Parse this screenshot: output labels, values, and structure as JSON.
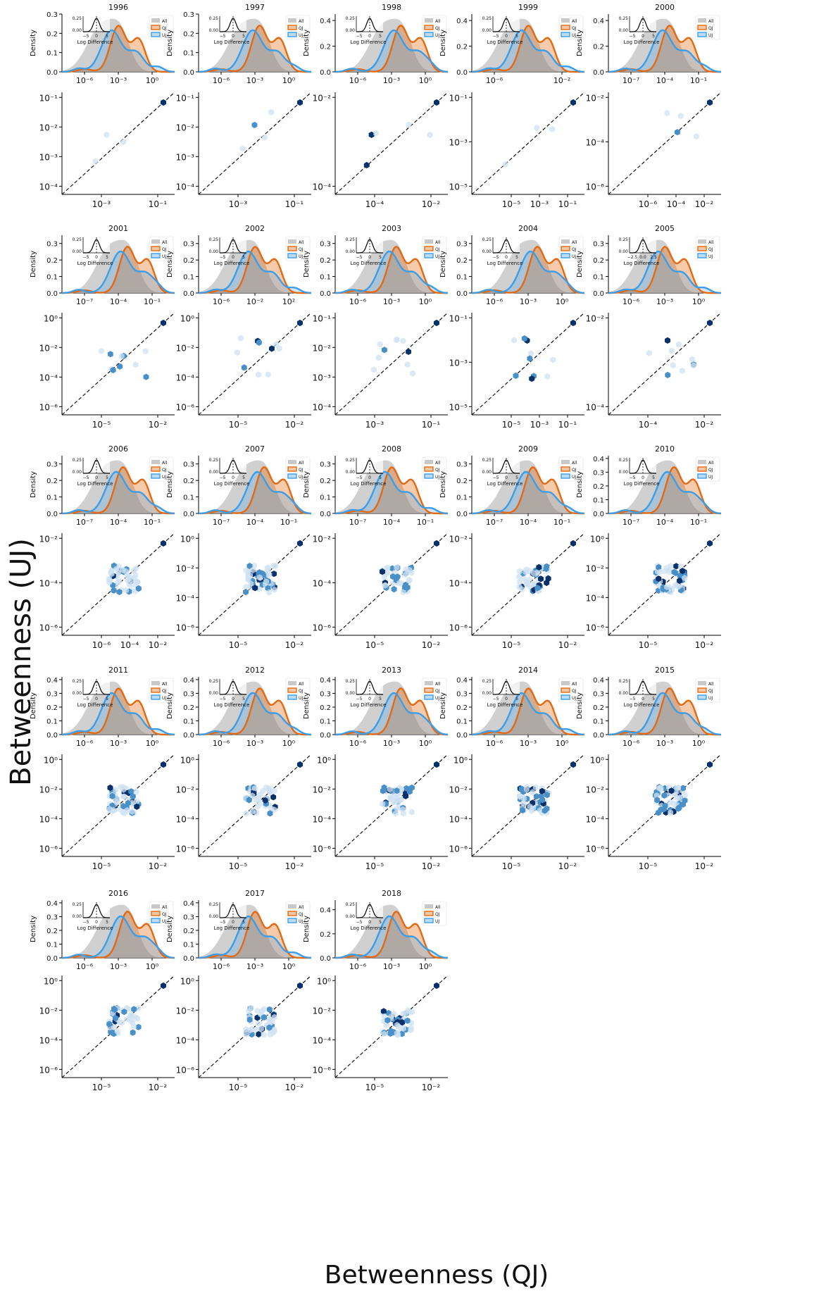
{
  "figure": {
    "ylabel": "Betweenness (UJ)",
    "xlabel": "Betweenness (QJ)"
  },
  "colors": {
    "all": "#c8c8c8",
    "qj": "#e46a12",
    "uj": "#3d9de6",
    "hex_dark": "#08306b",
    "hex_mid": "#4a90c8",
    "hex_light": "#cfe1f2",
    "diag": "#000000"
  },
  "density_common": {
    "ylabel": "Density",
    "inset_xlabel": "Log Difference",
    "legend": [
      "All",
      "QJ",
      "UJ"
    ]
  },
  "chart_data": [
    {
      "type": "area",
      "title": "1996",
      "ylim": [
        0,
        0.3
      ],
      "yticks": [
        "0.0",
        "0.1",
        "0.2",
        "0.3"
      ],
      "xticks": [
        "10⁻⁶",
        "10⁻³",
        "10⁰"
      ],
      "inset_yticks": [
        "0.25",
        "0.00"
      ],
      "inset_xticks": [
        "−5",
        "0",
        "5"
      ],
      "scatter_xticks": [
        "10⁻³",
        "10⁻¹"
      ],
      "scatter_yticks": [
        "10⁻¹",
        "10⁻²",
        "10⁻³",
        "10⁻⁴"
      ]
    },
    {
      "type": "area",
      "title": "1997",
      "ylim": [
        0,
        0.3
      ],
      "yticks": [
        "0.0",
        "0.1",
        "0.2",
        "0.3"
      ],
      "xticks": [
        "10⁻⁶",
        "10⁻³",
        "10⁰"
      ],
      "inset_yticks": [
        "0.25",
        "0.00"
      ],
      "inset_xticks": [
        "−5",
        "0",
        "5"
      ],
      "scatter_xticks": [
        "10⁻³",
        "10⁻¹"
      ],
      "scatter_yticks": [
        "10⁻¹",
        "10⁻²",
        "10⁻³",
        "10⁻⁴"
      ]
    },
    {
      "type": "area",
      "title": "1998",
      "ylim": [
        0,
        0.45
      ],
      "yticks": [
        "0.0",
        "0.2",
        "0.4"
      ],
      "xticks": [
        "10⁻⁶",
        "10⁻³",
        "10⁰"
      ],
      "inset_yticks": [
        "0.25",
        "0.00"
      ],
      "inset_xticks": [
        "−5",
        "0",
        "5"
      ],
      "scatter_xticks": [
        "10⁻⁴",
        "10⁻²"
      ],
      "scatter_yticks": [
        "10⁻²",
        "10⁻⁴"
      ]
    },
    {
      "type": "area",
      "title": "1999",
      "ylim": [
        0,
        0.45
      ],
      "yticks": [
        "0.0",
        "0.2",
        "0.4"
      ],
      "xticks": [
        "10⁻⁶",
        "10⁻²"
      ],
      "inset_yticks": [
        "0.25",
        "0.00"
      ],
      "inset_xticks": [
        "−5",
        "0",
        "5"
      ],
      "scatter_xticks": [
        "10⁻⁵",
        "10⁻³",
        "10⁻¹"
      ],
      "scatter_yticks": [
        "10⁻¹",
        "10⁻³",
        "10⁻⁵"
      ]
    },
    {
      "type": "area",
      "title": "2000",
      "ylim": [
        0,
        0.45
      ],
      "yticks": [
        "0.0",
        "0.2",
        "0.4"
      ],
      "xticks": [
        "10⁻⁷",
        "10⁻⁴",
        "10⁻¹"
      ],
      "inset_yticks": [
        "0.25",
        "0.00"
      ],
      "inset_xticks": [
        "−5",
        "0",
        "5"
      ],
      "scatter_xticks": [
        "10⁻⁶",
        "10⁻⁴",
        "10⁻²"
      ],
      "scatter_yticks": [
        "10⁻²",
        "10⁻⁴",
        "10⁻⁶"
      ]
    },
    {
      "type": "area",
      "title": "2001",
      "ylim": [
        0,
        0.35
      ],
      "yticks": [
        "0.0",
        "0.1",
        "0.2",
        "0.3"
      ],
      "xticks": [
        "10⁻⁷",
        "10⁻⁴",
        "10⁻¹"
      ],
      "inset_yticks": [
        "0.25",
        "0.00"
      ],
      "inset_xticks": [
        "−5",
        "0",
        "5"
      ],
      "scatter_xticks": [
        "10⁻⁵",
        "10⁻²"
      ],
      "scatter_yticks": [
        "10⁰",
        "10⁻²",
        "10⁻⁴",
        "10⁻⁶"
      ]
    },
    {
      "type": "area",
      "title": "2002",
      "ylim": [
        0,
        0.35
      ],
      "yticks": [
        "0.0",
        "0.1",
        "0.2",
        "0.3"
      ],
      "xticks": [
        "10⁻⁶",
        "10⁻²",
        "10²"
      ],
      "inset_yticks": [
        "0.25",
        "0.00"
      ],
      "inset_xticks": [
        "−5",
        "0",
        "5"
      ],
      "scatter_xticks": [
        "10⁻⁵",
        "10⁻²"
      ],
      "scatter_yticks": [
        "10⁰",
        "10⁻²",
        "10⁻⁴",
        "10⁻⁶"
      ]
    },
    {
      "type": "area",
      "title": "2003",
      "ylim": [
        0,
        0.35
      ],
      "yticks": [
        "0.0",
        "0.1",
        "0.2",
        "0.3"
      ],
      "xticks": [
        "10⁻⁶",
        "10⁻³",
        "10⁰"
      ],
      "inset_yticks": [
        "0.25",
        "0.00"
      ],
      "inset_xticks": [
        "−5",
        "0",
        "5"
      ],
      "scatter_xticks": [
        "10⁻³",
        "10⁻¹"
      ],
      "scatter_yticks": [
        "10⁻¹",
        "10⁻²",
        "10⁻³",
        "10⁻⁴"
      ]
    },
    {
      "type": "area",
      "title": "2004",
      "ylim": [
        0,
        0.35
      ],
      "yticks": [
        "0.0",
        "0.1",
        "0.2",
        "0.3"
      ],
      "xticks": [
        "10⁻⁶",
        "10⁻³",
        "10⁰"
      ],
      "inset_yticks": [
        "0.25",
        "0.00"
      ],
      "inset_xticks": [
        "−5",
        "0",
        "5"
      ],
      "scatter_xticks": [
        "10⁻⁵",
        "10⁻³",
        "10⁻¹"
      ],
      "scatter_yticks": [
        "10⁻¹",
        "10⁻³",
        "10⁻⁵"
      ]
    },
    {
      "type": "area",
      "title": "2005",
      "ylim": [
        0,
        0.35
      ],
      "yticks": [
        "0.0",
        "0.1",
        "0.2",
        "0.3"
      ],
      "xticks": [
        "10⁻⁶",
        "10⁻³",
        "10⁰"
      ],
      "inset_yticks": [
        "0.25",
        "0.00"
      ],
      "inset_xticks": [
        "−2.5",
        "0.0",
        "2.5"
      ],
      "scatter_xticks": [
        "10⁻⁴",
        "10⁻²"
      ],
      "scatter_yticks": [
        "10⁻²",
        "10⁻⁴"
      ]
    },
    {
      "type": "area",
      "title": "2006",
      "ylim": [
        0,
        0.35
      ],
      "yticks": [
        "0.0",
        "0.1",
        "0.2",
        "0.3"
      ],
      "xticks": [
        "10⁻⁷",
        "10⁻⁴",
        "10⁻¹"
      ],
      "inset_yticks": [
        "0.25",
        "0.00"
      ],
      "inset_xticks": [
        "−5",
        "0",
        "5"
      ],
      "scatter_xticks": [
        "10⁻⁶",
        "10⁻⁴",
        "10⁻²"
      ],
      "scatter_yticks": [
        "10⁻²",
        "10⁻⁴",
        "10⁻⁶"
      ]
    },
    {
      "type": "area",
      "title": "2007",
      "ylim": [
        0,
        0.35
      ],
      "yticks": [
        "0.0",
        "0.1",
        "0.2",
        "0.3"
      ],
      "xticks": [
        "10⁻⁷",
        "10⁻⁴",
        "10⁻¹"
      ],
      "inset_yticks": [
        "0.25",
        "0.00"
      ],
      "inset_xticks": [
        "−5",
        "0",
        "5"
      ],
      "scatter_xticks": [
        "10⁻⁵",
        "10⁻²"
      ],
      "scatter_yticks": [
        "10⁰",
        "10⁻²",
        "10⁻⁴",
        "10⁻⁶"
      ]
    },
    {
      "type": "area",
      "title": "2008",
      "ylim": [
        0,
        0.35
      ],
      "yticks": [
        "0.0",
        "0.1",
        "0.2",
        "0.3"
      ],
      "xticks": [
        "10⁻⁷",
        "10⁻⁴",
        "10⁻¹"
      ],
      "inset_yticks": [
        "0.25",
        "0.00"
      ],
      "inset_xticks": [
        "−5",
        "0",
        "5"
      ],
      "scatter_xticks": [
        "10⁻⁵",
        "10⁻²"
      ],
      "scatter_yticks": [
        "10⁻²",
        "10⁻⁴",
        "10⁻⁶"
      ]
    },
    {
      "type": "area",
      "title": "2009",
      "ylim": [
        0,
        0.35
      ],
      "yticks": [
        "0.0",
        "0.1",
        "0.2",
        "0.3"
      ],
      "xticks": [
        "10⁻⁷",
        "10⁻⁴",
        "10⁻¹"
      ],
      "inset_yticks": [
        "0.25",
        "0.00"
      ],
      "inset_xticks": [
        "−5",
        "0",
        "5"
      ],
      "scatter_xticks": [
        "10⁻⁵",
        "10⁻²"
      ],
      "scatter_yticks": [
        "10⁻²",
        "10⁻⁴",
        "10⁻⁶"
      ]
    },
    {
      "type": "area",
      "title": "2010",
      "ylim": [
        0,
        0.42
      ],
      "yticks": [
        "0.0",
        "0.1",
        "0.2",
        "0.3",
        "0.4"
      ],
      "xticks": [
        "10⁻⁷",
        "10⁻⁴",
        "10⁻¹"
      ],
      "inset_yticks": [
        "0.25",
        "0.00"
      ],
      "inset_xticks": [
        "−5",
        "0",
        "5"
      ],
      "scatter_xticks": [
        "10⁻⁵",
        "10⁻²"
      ],
      "scatter_yticks": [
        "10⁰",
        "10⁻²",
        "10⁻⁴",
        "10⁻⁶"
      ]
    },
    {
      "type": "area",
      "title": "2011",
      "ylim": [
        0,
        0.42
      ],
      "yticks": [
        "0.0",
        "0.1",
        "0.2",
        "0.3",
        "0.4"
      ],
      "xticks": [
        "10⁻⁶",
        "10⁻³",
        "10⁰"
      ],
      "inset_yticks": [
        "0.25",
        "0.00"
      ],
      "inset_xticks": [
        "−5",
        "0",
        "5"
      ],
      "scatter_xticks": [
        "10⁻⁵",
        "10⁻²"
      ],
      "scatter_yticks": [
        "10⁰",
        "10⁻²",
        "10⁻⁴",
        "10⁻⁶"
      ]
    },
    {
      "type": "area",
      "title": "2012",
      "ylim": [
        0,
        0.42
      ],
      "yticks": [
        "0.0",
        "0.1",
        "0.2",
        "0.3",
        "0.4"
      ],
      "xticks": [
        "10⁻⁶",
        "10⁻³",
        "10⁰"
      ],
      "inset_yticks": [
        "0.25",
        "0.00"
      ],
      "inset_xticks": [
        "−5",
        "0",
        "5"
      ],
      "scatter_xticks": [
        "10⁻⁵",
        "10⁻²"
      ],
      "scatter_yticks": [
        "10⁰",
        "10⁻²",
        "10⁻⁴",
        "10⁻⁶"
      ]
    },
    {
      "type": "area",
      "title": "2013",
      "ylim": [
        0,
        0.42
      ],
      "yticks": [
        "0.0",
        "0.1",
        "0.2",
        "0.3",
        "0.4"
      ],
      "xticks": [
        "10⁻⁶",
        "10⁻³",
        "10⁰"
      ],
      "inset_yticks": [
        "0.25",
        "0.00"
      ],
      "inset_xticks": [
        "−5",
        "0",
        "5"
      ],
      "scatter_xticks": [
        "10⁻⁵",
        "10⁻²"
      ],
      "scatter_yticks": [
        "10⁰",
        "10⁻²",
        "10⁻⁴",
        "10⁻⁶"
      ]
    },
    {
      "type": "area",
      "title": "2014",
      "ylim": [
        0,
        0.42
      ],
      "yticks": [
        "0.0",
        "0.1",
        "0.2",
        "0.3",
        "0.4"
      ],
      "xticks": [
        "10⁻⁶",
        "10⁻³",
        "10⁰"
      ],
      "inset_yticks": [
        "0.25",
        "0.00"
      ],
      "inset_xticks": [
        "−5",
        "0",
        "5"
      ],
      "scatter_xticks": [
        "10⁻⁵",
        "10⁻²"
      ],
      "scatter_yticks": [
        "10⁰",
        "10⁻²",
        "10⁻⁴",
        "10⁻⁶"
      ]
    },
    {
      "type": "area",
      "title": "2015",
      "ylim": [
        0,
        0.42
      ],
      "yticks": [
        "0.0",
        "0.1",
        "0.2",
        "0.3",
        "0.4"
      ],
      "xticks": [
        "10⁻⁶",
        "10⁻³",
        "10⁰"
      ],
      "inset_yticks": [
        "0.25",
        "0.00"
      ],
      "inset_xticks": [
        "−5",
        "0",
        "5"
      ],
      "scatter_xticks": [
        "10⁻⁵",
        "10⁻²"
      ],
      "scatter_yticks": [
        "10⁰",
        "10⁻²",
        "10⁻⁴",
        "10⁻⁶"
      ]
    },
    {
      "type": "area",
      "title": "2016",
      "ylim": [
        0,
        0.42
      ],
      "yticks": [
        "0.0",
        "0.1",
        "0.2",
        "0.3",
        "0.4"
      ],
      "xticks": [
        "10⁻⁶",
        "10⁻³",
        "10⁰"
      ],
      "inset_yticks": [
        "0.25",
        "0.00"
      ],
      "inset_xticks": [
        "−5",
        "0",
        "5"
      ],
      "scatter_xticks": [
        "10⁻⁵",
        "10⁻²"
      ],
      "scatter_yticks": [
        "10⁰",
        "10⁻²",
        "10⁻⁴",
        "10⁻⁶"
      ]
    },
    {
      "type": "area",
      "title": "2017",
      "ylim": [
        0,
        0.42
      ],
      "yticks": [
        "0.0",
        "0.1",
        "0.2",
        "0.3",
        "0.4"
      ],
      "xticks": [
        "10⁻⁶",
        "10⁻³",
        "10⁰"
      ],
      "inset_yticks": [
        "0.25",
        "0.00"
      ],
      "inset_xticks": [
        "−5",
        "0",
        "5"
      ],
      "scatter_xticks": [
        "10⁻⁵",
        "10⁻²"
      ],
      "scatter_yticks": [
        "10⁰",
        "10⁻²",
        "10⁻⁴",
        "10⁻⁶"
      ]
    },
    {
      "type": "area",
      "title": "2018",
      "ylim": [
        0,
        0.48
      ],
      "yticks": [
        "0.0",
        "0.2",
        "0.4"
      ],
      "xticks": [
        "10⁻⁶",
        "10⁻³",
        "10⁰"
      ],
      "inset_yticks": [
        "0.25",
        "0.00"
      ],
      "inset_xticks": [
        "−5",
        "0",
        "5"
      ],
      "scatter_xticks": [
        "10⁻⁵",
        "10⁻²"
      ],
      "scatter_yticks": [
        "10⁰",
        "10⁻²",
        "10⁻⁴",
        "10⁻⁶"
      ]
    }
  ]
}
